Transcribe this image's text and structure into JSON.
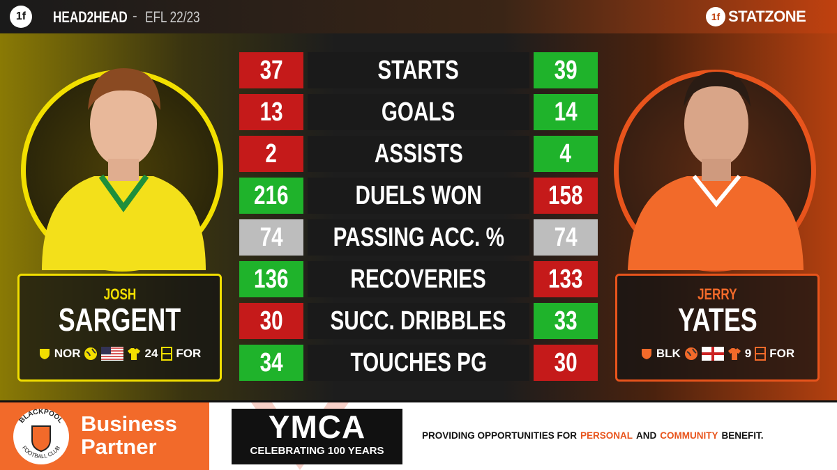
{
  "header": {
    "mark": "1f",
    "brand": "HEAD2HEAD",
    "separator": "-",
    "competition": "EFL 22/23",
    "logo_mark": "1f",
    "logo": "STATZONE"
  },
  "players": [
    {
      "first": "JOSH",
      "last": "SARGENT",
      "club": "NOR",
      "shirt": "24",
      "position": "FOR"
    },
    {
      "first": "JERRY",
      "last": "YATES",
      "club": "BLK",
      "shirt": "9",
      "position": "FOR"
    }
  ],
  "stats": [
    {
      "label": "STARTS",
      "left": 37,
      "right": 39
    },
    {
      "label": "GOALS",
      "left": 13,
      "right": 14
    },
    {
      "label": "ASSISTS",
      "left": 2,
      "right": 4
    },
    {
      "label": "DUELS WON",
      "left": 216,
      "right": 158
    },
    {
      "label": "PASSING ACC. %",
      "left": 74,
      "right": 74
    },
    {
      "label": "RECOVERIES",
      "left": 136,
      "right": 133
    },
    {
      "label": "SUCC. DRIBBLES",
      "left": 30,
      "right": 33
    },
    {
      "label": "TOUCHES PG",
      "left": 34,
      "right": 30
    }
  ],
  "footer": {
    "crest_top": "BLACKPOOL",
    "crest_bottom": "FOOTBALL CLUB",
    "partner_1": "Business",
    "partner_2": "Partner",
    "sponsor": "YMCA",
    "sponsor_sub": "CELEBRATING 100 YEARS",
    "tagline": [
      "PROVIDING OPPORTUNITIES FOR",
      "PERSONAL",
      "AND",
      "COMMUNITY",
      "BENEFIT."
    ]
  }
}
